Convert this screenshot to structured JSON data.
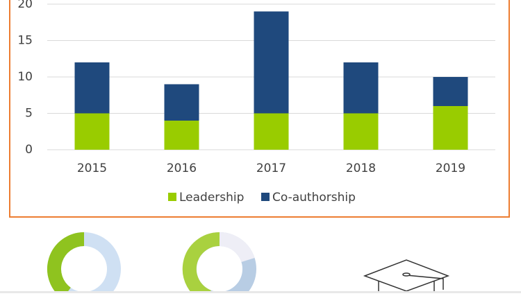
{
  "chart_data": {
    "type": "stacked-bar",
    "categories": [
      "2015",
      "2016",
      "2017",
      "2018",
      "2019"
    ],
    "series": [
      {
        "name": "Leadership",
        "color": "#99cc00",
        "values": [
          5,
          4,
          5,
          5,
          6
        ]
      },
      {
        "name": "Co-authorship",
        "color": "#1f497d",
        "values": [
          7,
          5,
          14,
          7,
          4
        ]
      }
    ],
    "ylim": [
      0,
      20
    ],
    "yticks": [
      0,
      5,
      10,
      15,
      20
    ],
    "grid": true,
    "legend": "bottom"
  }
}
